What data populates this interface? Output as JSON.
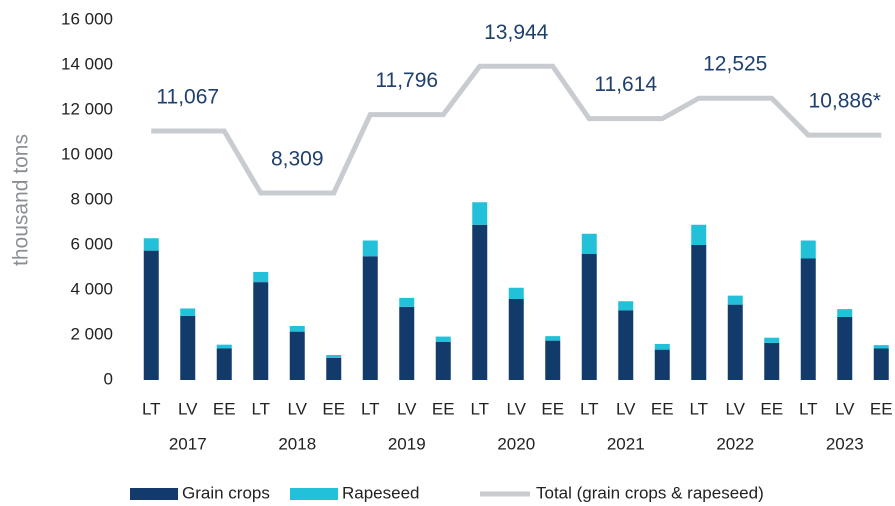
{
  "chart_data": {
    "type": "stacked_bar_line",
    "y_axis_label": "thousand tons",
    "categories": [
      "LT",
      "LV",
      "EE",
      "LT",
      "LV",
      "EE",
      "LT",
      "LV",
      "EE",
      "LT",
      "LV",
      "EE",
      "LT",
      "LV",
      "EE",
      "LT",
      "LV",
      "EE",
      "LT",
      "LV",
      "EE"
    ],
    "groups": [
      "2017",
      "2018",
      "2019",
      "2020",
      "2021",
      "2022",
      "2023"
    ],
    "ylim": [
      0,
      16000
    ],
    "yticks": [
      0,
      {
        "value": 2000,
        "label": "2 000"
      },
      {
        "value": 4000,
        "label": "4 000"
      },
      {
        "value": 6000,
        "label": "6 000"
      },
      {
        "value": 8000,
        "label": "8 000"
      },
      {
        "value": 10000,
        "label": "10 000"
      },
      {
        "value": 12000,
        "label": "12 000"
      },
      {
        "value": 14000,
        "label": "14 000"
      },
      {
        "value": 16000,
        "label": "16 000"
      }
    ],
    "series": [
      {
        "name": "Grain crops",
        "color": "#123a6b",
        "kind": "bar",
        "values": [
          5750,
          2850,
          1400,
          4350,
          2150,
          980,
          5500,
          3250,
          1700,
          6900,
          3600,
          1750,
          5600,
          3100,
          1350,
          6000,
          3350,
          1650,
          5400,
          2800,
          1400
        ]
      },
      {
        "name": "Rapeseed",
        "color": "#22c1d9",
        "kind": "bar",
        "values": [
          550,
          330,
          170,
          450,
          250,
          130,
          700,
          400,
          230,
          1000,
          500,
          200,
          900,
          400,
          250,
          900,
          400,
          230,
          800,
          350,
          150
        ]
      },
      {
        "name": "Total (grain crops & rapeseed)",
        "color": "#c8ccd1",
        "kind": "line",
        "values": [
          11067,
          11067,
          11067,
          8309,
          8309,
          8309,
          11796,
          11796,
          11796,
          13944,
          13944,
          13944,
          11614,
          11614,
          11614,
          12525,
          12525,
          12525,
          10886,
          10886,
          10886
        ],
        "value_labels": [
          null,
          "11,067",
          null,
          null,
          "8,309",
          null,
          null,
          "11,796",
          null,
          null,
          "13,944",
          null,
          null,
          "11,614",
          null,
          null,
          "12,525",
          null,
          null,
          "10,886*",
          null
        ]
      }
    ]
  }
}
